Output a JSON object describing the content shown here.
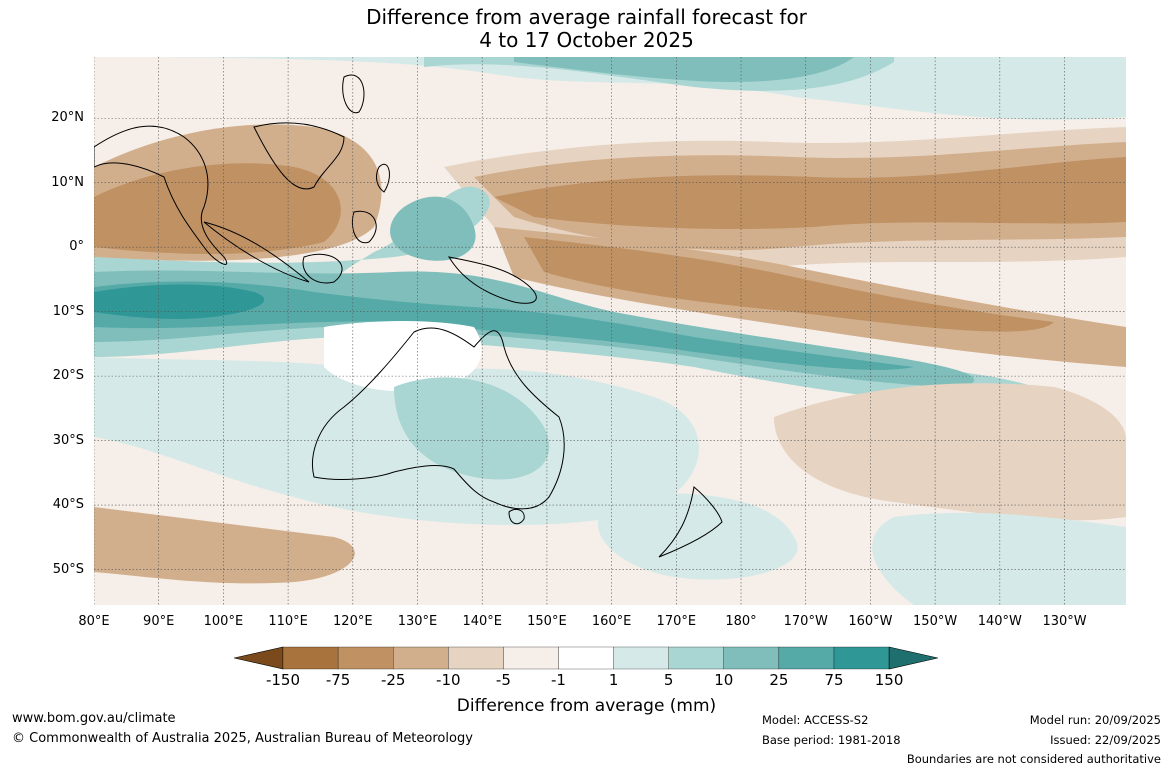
{
  "title_line1": "Difference from average rainfall forecast for",
  "title_line2": "4 to 17 October 2025",
  "lat_labels": [
    {
      "text": "20°N",
      "lat": 20
    },
    {
      "text": "10°N",
      "lat": 10
    },
    {
      "text": "0°",
      "lat": 0
    },
    {
      "text": "10°S",
      "lat": -10
    },
    {
      "text": "20°S",
      "lat": -20
    },
    {
      "text": "30°S",
      "lat": -30
    },
    {
      "text": "40°S",
      "lat": -40
    },
    {
      "text": "50°S",
      "lat": -50
    }
  ],
  "lon_labels": [
    {
      "text": "80°E",
      "lon": 80
    },
    {
      "text": "90°E",
      "lon": 90
    },
    {
      "text": "100°E",
      "lon": 100
    },
    {
      "text": "110°E",
      "lon": 110
    },
    {
      "text": "120°E",
      "lon": 120
    },
    {
      "text": "130°E",
      "lon": 130
    },
    {
      "text": "140°E",
      "lon": 140
    },
    {
      "text": "150°E",
      "lon": 150
    },
    {
      "text": "160°E",
      "lon": 160
    },
    {
      "text": "170°E",
      "lon": 170
    },
    {
      "text": "180°",
      "lon": 180
    },
    {
      "text": "170°W",
      "lon": 190
    },
    {
      "text": "160°W",
      "lon": 200
    },
    {
      "text": "150°W",
      "lon": 210
    },
    {
      "text": "140°W",
      "lon": 220
    },
    {
      "text": "130°W",
      "lon": 230
    }
  ],
  "map_extent": {
    "lon_min": 80,
    "lon_max": 239.5,
    "lat_min": -55.5,
    "lat_max": 29.5
  },
  "colorbar": {
    "title": "Difference from average (mm)",
    "ticks": [
      "-150",
      "-75",
      "-25",
      "-10",
      "-5",
      "-1",
      "1",
      "5",
      "10",
      "25",
      "75",
      "150"
    ],
    "colors": [
      "#7a4a1c",
      "#a8733c",
      "#bf9163",
      "#d2af8c",
      "#e6d3c1",
      "#f6eee8",
      "#ffffff",
      "#d5eae8",
      "#a9d5d2",
      "#7fbebb",
      "#55aaa8",
      "#2f9897",
      "#1f6f6e"
    ]
  },
  "footer": {
    "url": "www.bom.gov.au/climate",
    "copyright": "© Commonwealth of Australia 2025, Australian Bureau of Meteorology",
    "model": "Model: ACCESS-S2",
    "base_period": "Base period: 1981-2018",
    "model_run": "Model run: 20/09/2025",
    "issued": "Issued: 22/09/2025",
    "disclaimer": "Boundaries are not considered authoritative"
  }
}
